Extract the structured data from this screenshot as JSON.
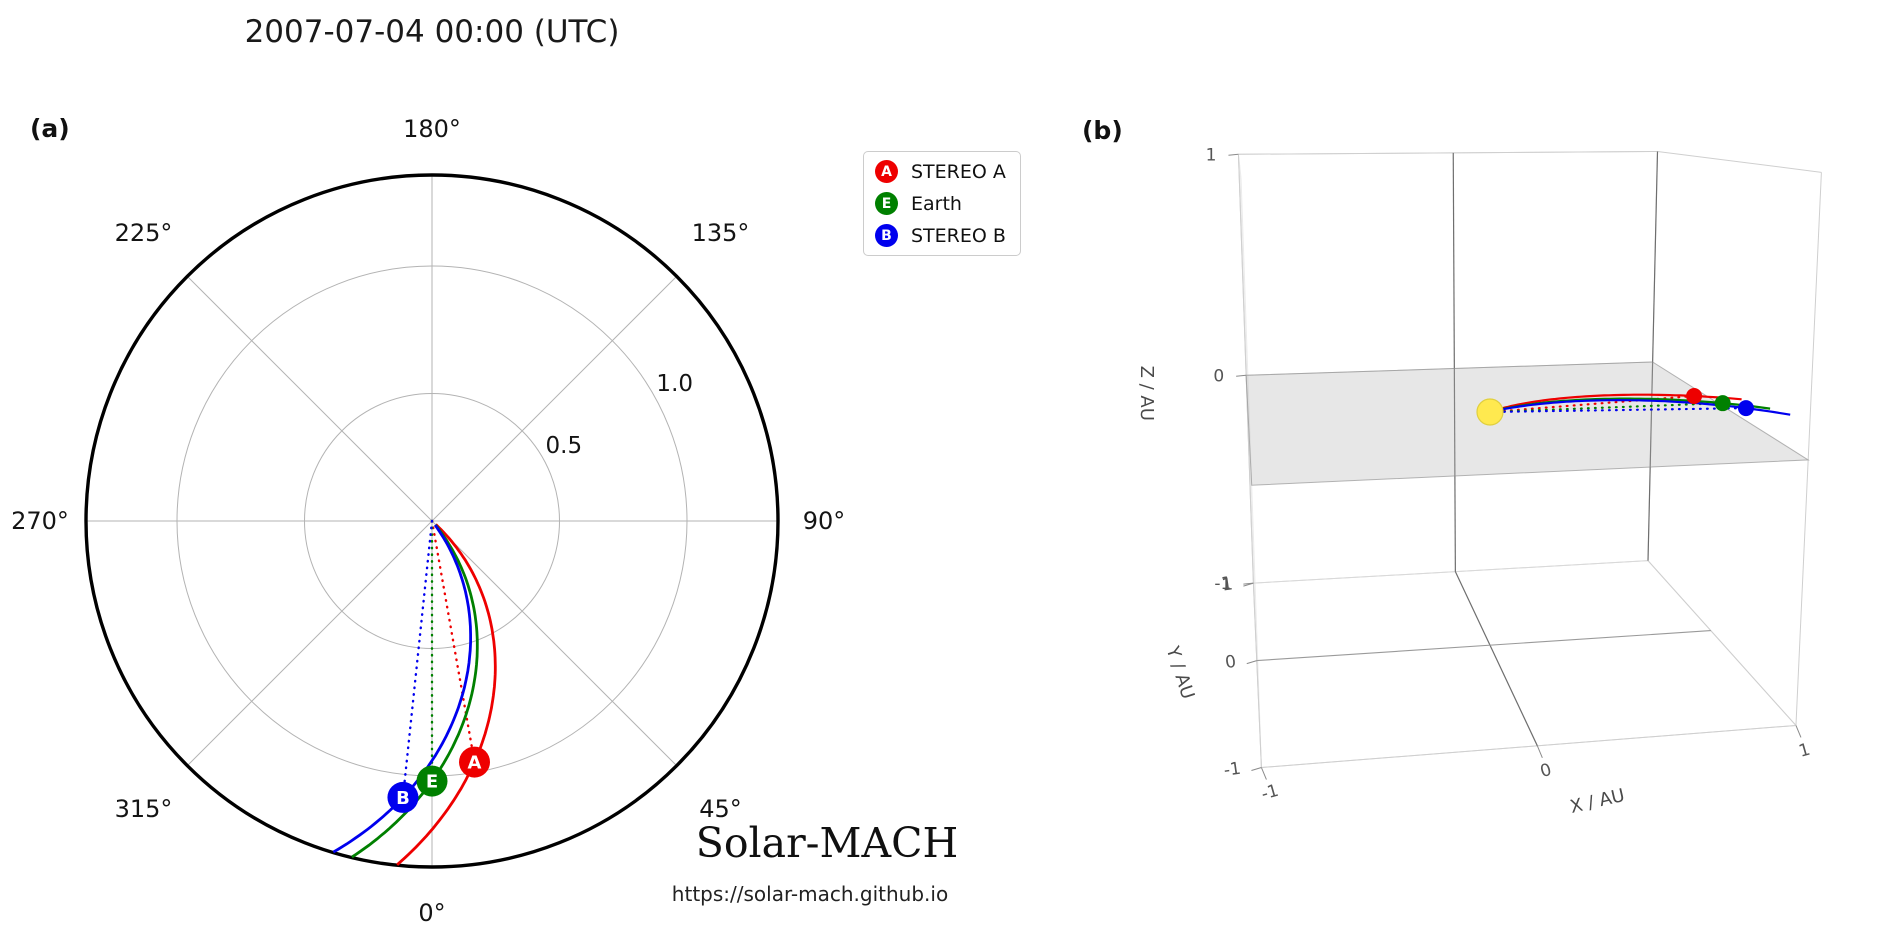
{
  "figure": {
    "title": "2007-07-04 00:00 (UTC)",
    "panel_labels": {
      "a": "(a)",
      "b": "(b)"
    },
    "branding": {
      "wordmark": "Solar-MACH",
      "url": "https://solar-mach.github.io"
    }
  },
  "legend": {
    "items": [
      {
        "letter": "A",
        "label": "STEREO A",
        "color": "#ee0000"
      },
      {
        "letter": "E",
        "label": "Earth",
        "color": "#008000"
      },
      {
        "letter": "B",
        "label": "STEREO B",
        "color": "#0000ee"
      }
    ]
  },
  "chart_data": [
    {
      "type": "polar",
      "panel": "(a)",
      "description": "Solar-MACH view of spacecraft constellation in the ecliptic plane with Parker spirals",
      "angle_ticks_deg": [
        0,
        45,
        90,
        135,
        180,
        225,
        270,
        315
      ],
      "angle_tick_labels": [
        "0°",
        "45°",
        "90°",
        "135°",
        "180°",
        "225°",
        "270°",
        "315°"
      ],
      "r_ticks_au": [
        0.5,
        1.0
      ],
      "r_tick_labels": [
        "0.5",
        "1.0"
      ],
      "r_max_au": 1.36,
      "grid": true,
      "spiral_curvature_deg_per_au": 40,
      "bodies": [
        {
          "name": "STEREO A",
          "letter": "A",
          "color": "#ee0000",
          "r_au": 0.96,
          "lon_deg": 10.0
        },
        {
          "name": "Earth",
          "letter": "E",
          "color": "#008000",
          "r_au": 1.02,
          "lon_deg": 0.0
        },
        {
          "name": "STEREO B",
          "letter": "B",
          "color": "#0000ee",
          "r_au": 1.09,
          "lon_deg": -6.0
        }
      ]
    },
    {
      "type": "scatter3d",
      "panel": "(b)",
      "xlabel": "X / AU",
      "ylabel": "Y / AU",
      "zlabel": "Z / AU",
      "x_ticks": [
        -1,
        0,
        1
      ],
      "y_ticks": [
        -1,
        0,
        1
      ],
      "z_ticks": [
        -1,
        0,
        1
      ],
      "x_tick_labels": [
        "-1",
        "0",
        "1"
      ],
      "y_tick_labels": [
        "-1",
        "0",
        "1"
      ],
      "z_tick_labels": [
        "-1",
        "0",
        "1"
      ],
      "xlim": [
        -1,
        1
      ],
      "ylim": [
        -1,
        1
      ],
      "zlim": [
        -1,
        1
      ],
      "ecliptic_plane_z": 0,
      "sun": {
        "name": "Sun",
        "color": "#ffe94f",
        "position_au": [
          0,
          0,
          0
        ]
      },
      "bodies": [
        {
          "name": "STEREO A",
          "color": "#ee0000",
          "r_au": 0.96,
          "lon_deg": 10.0,
          "lat_deg": 0.0
        },
        {
          "name": "Earth",
          "color": "#008000",
          "r_au": 1.02,
          "lon_deg": 0.0,
          "lat_deg": 0.0
        },
        {
          "name": "STEREO B",
          "color": "#0000ee",
          "r_au": 1.09,
          "lon_deg": -6.0,
          "lat_deg": 0.0
        }
      ]
    }
  ]
}
